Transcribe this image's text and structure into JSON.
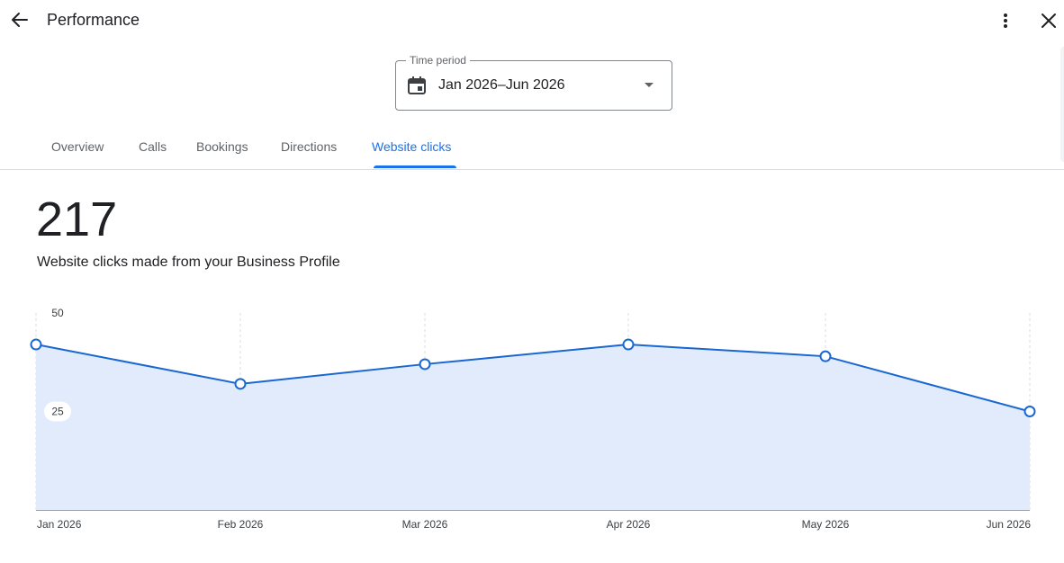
{
  "header": {
    "title": "Performance",
    "back_icon": "arrow-back-icon",
    "more_icon": "more-vert-icon",
    "close_icon": "close-icon"
  },
  "time_period": {
    "label": "Time period",
    "value": "Jan 2026–Jun 2026",
    "icon": "calendar-icon"
  },
  "tabs": [
    {
      "label": "Overview",
      "active": false
    },
    {
      "label": "Calls",
      "active": false
    },
    {
      "label": "Bookings",
      "active": false
    },
    {
      "label": "Directions",
      "active": false
    },
    {
      "label": "Website clicks",
      "active": true
    }
  ],
  "summary": {
    "total": "217",
    "description": "Website clicks made from your Business Profile"
  },
  "colors": {
    "accent": "#1a73e8",
    "line": "#1967d2",
    "area_fill": "#e2ebfb",
    "gridline": "#dadce0"
  },
  "chart_data": {
    "type": "area",
    "categories": [
      "Jan 2026",
      "Feb 2026",
      "Mar 2026",
      "Apr 2026",
      "May 2026",
      "Jun 2026"
    ],
    "values": [
      42,
      32,
      37,
      42,
      39,
      25
    ],
    "yticks": [
      50,
      25
    ],
    "ylim": [
      0,
      50
    ],
    "grid": "vertical-dashed"
  }
}
